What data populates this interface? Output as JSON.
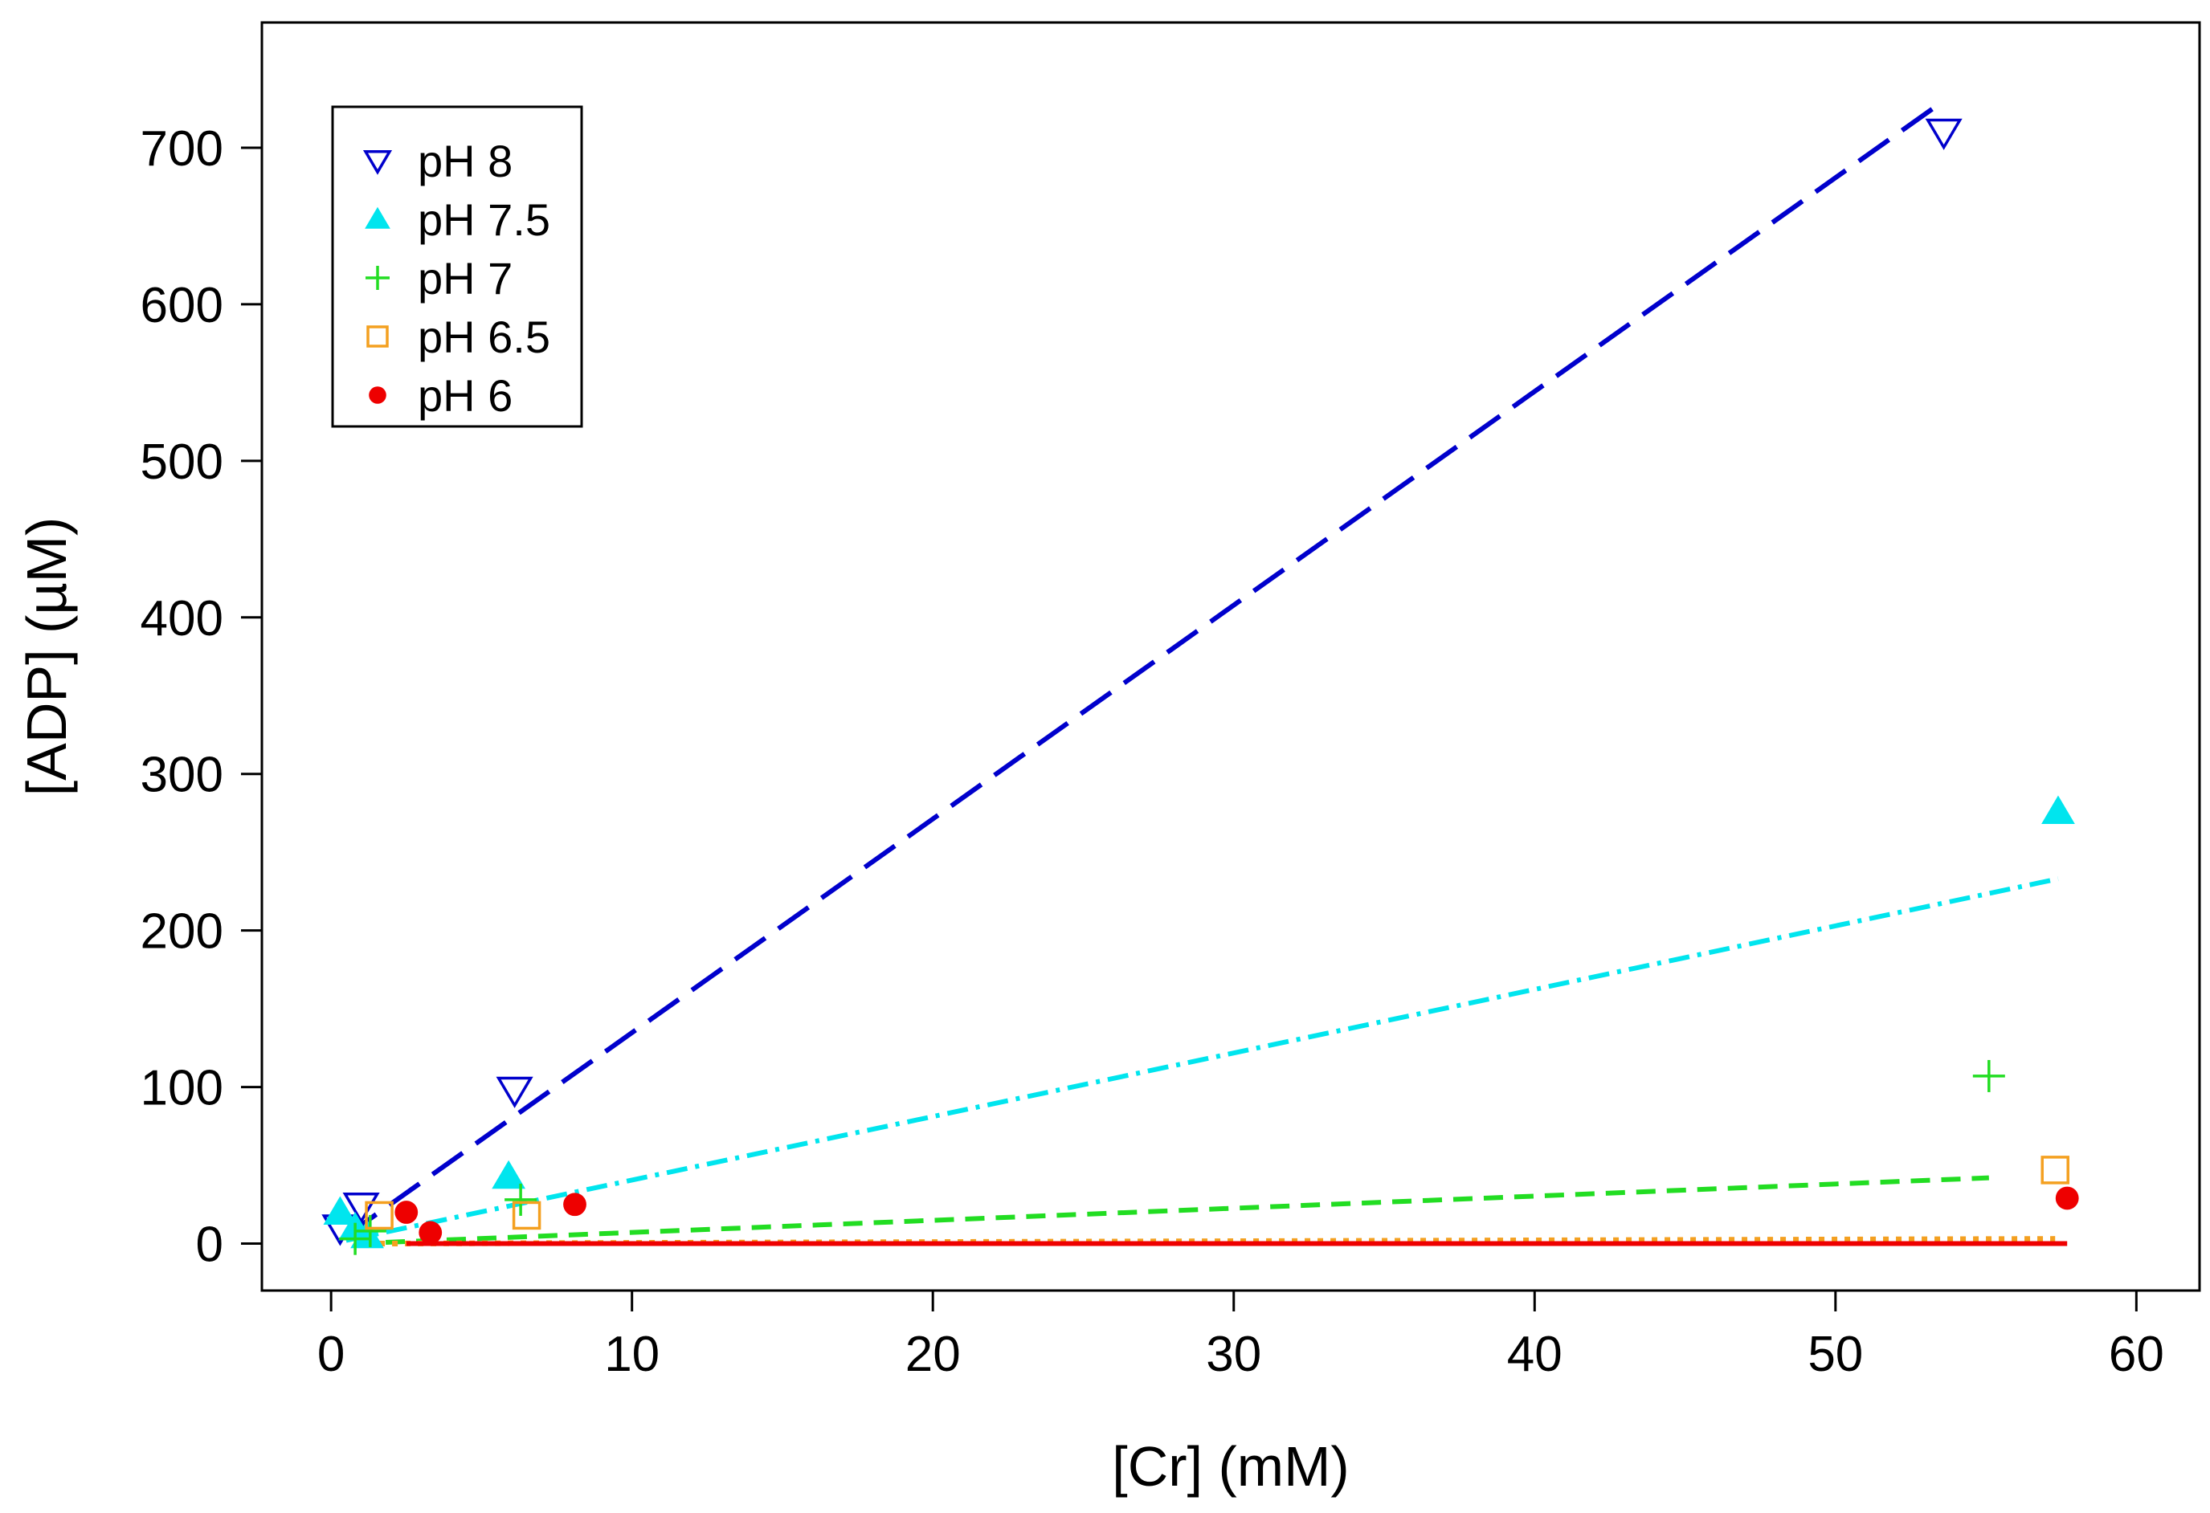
{
  "chart_data": {
    "type": "scatter",
    "title": "",
    "xlabel": "[Cr] (mM)",
    "ylabel": "[ADP] (µM)",
    "xlim": [
      -2.3,
      62.1
    ],
    "ylim": [
      -30,
      780
    ],
    "x_ticks": [
      0,
      10,
      20,
      30,
      40,
      50,
      60
    ],
    "y_ticks": [
      0,
      100,
      200,
      300,
      400,
      500,
      600,
      700
    ],
    "legend_position": "top-left",
    "series": [
      {
        "name": "pH 8",
        "marker": "triangle-down-open",
        "color": "#0000cc",
        "line_style": "long-dash",
        "points": [
          {
            "x": 0.3,
            "y": 10
          },
          {
            "x": 1.0,
            "y": 24
          },
          {
            "x": 6.1,
            "y": 98
          },
          {
            "x": 53.6,
            "y": 710
          }
        ],
        "fit": {
          "x": [
            0.5,
            53.6
          ],
          "y": [
            5,
            730
          ]
        }
      },
      {
        "name": "pH 7.5",
        "marker": "triangle-filled",
        "color": "#00e5ee",
        "line_style": "dot-dash",
        "points": [
          {
            "x": 0.3,
            "y": 20
          },
          {
            "x": 0.8,
            "y": 10
          },
          {
            "x": 1.2,
            "y": 5
          },
          {
            "x": 5.9,
            "y": 43
          },
          {
            "x": 57.4,
            "y": 276
          }
        ],
        "fit": {
          "x": [
            0.5,
            57.4
          ],
          "y": [
            2,
            233
          ]
        }
      },
      {
        "name": "pH 7",
        "marker": "plus",
        "color": "#22dd22",
        "line_style": "short-dash",
        "points": [
          {
            "x": 0.8,
            "y": 3
          },
          {
            "x": 1.3,
            "y": 8
          },
          {
            "x": 6.3,
            "y": 28
          },
          {
            "x": 55.1,
            "y": 107
          }
        ],
        "fit": {
          "x": [
            0.8,
            55.1
          ],
          "y": [
            0,
            42
          ]
        }
      },
      {
        "name": "pH 6.5",
        "marker": "square-open",
        "color": "#f4a020",
        "line_style": "dotted",
        "points": [
          {
            "x": 1.6,
            "y": 18
          },
          {
            "x": 6.5,
            "y": 18
          },
          {
            "x": 57.3,
            "y": 47
          }
        ],
        "fit": {
          "x": [
            1.6,
            57.3
          ],
          "y": [
            0,
            3
          ]
        }
      },
      {
        "name": "pH 6",
        "marker": "circle-filled",
        "color": "#ee0000",
        "line_style": "solid",
        "points": [
          {
            "x": 2.5,
            "y": 20
          },
          {
            "x": 3.3,
            "y": 7
          },
          {
            "x": 8.1,
            "y": 25
          },
          {
            "x": 57.7,
            "y": 29
          }
        ],
        "fit": {
          "x": [
            2.5,
            57.7
          ],
          "y": [
            0,
            0
          ]
        }
      }
    ]
  }
}
